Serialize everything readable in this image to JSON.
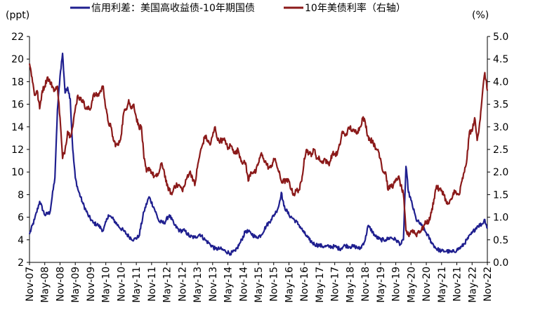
{
  "chart_data": {
    "type": "line",
    "left_unit": "(ppt)",
    "right_unit": "(%)",
    "legend_position": "top",
    "grid": false,
    "left_axis": {
      "min": 2,
      "max": 22,
      "step": 2,
      "ticks": [
        "2",
        "4",
        "6",
        "8",
        "10",
        "12",
        "14",
        "16",
        "18",
        "20",
        "22"
      ]
    },
    "right_axis": {
      "min": 0,
      "max": 5,
      "step": 0.5,
      "ticks": [
        "0.0",
        "0.5",
        "1.0",
        "1.5",
        "2.0",
        "2.5",
        "3.0",
        "3.5",
        "4.0",
        "4.5",
        "5.0"
      ]
    },
    "x_axis": {
      "start": "2007-11",
      "end": "2022-11",
      "ticks": [
        "Nov-07",
        "May-08",
        "Nov-08",
        "May-09",
        "Nov-09",
        "May-10",
        "Nov-10",
        "May-11",
        "Nov-11",
        "May-12",
        "Nov-12",
        "May-13",
        "Nov-13",
        "May-14",
        "Nov-14",
        "May-15",
        "Nov-15",
        "May-16",
        "Nov-16",
        "May-17",
        "Nov-17",
        "May-18",
        "Nov-18",
        "May-19",
        "Nov-19",
        "May-20",
        "Nov-20",
        "May-21",
        "Nov-21",
        "May-22",
        "Nov-22"
      ]
    },
    "series": [
      {
        "name": "信用利差：美国高收益债-10年期国债",
        "axis": "left",
        "color": "#1f1f8f",
        "points": [
          [
            "2007-11",
            4.5
          ],
          [
            "2008-01",
            5.8
          ],
          [
            "2008-03",
            7.4
          ],
          [
            "2008-05",
            6.2
          ],
          [
            "2008-07",
            6.4
          ],
          [
            "2008-09",
            9.5
          ],
          [
            "2008-10",
            15.5
          ],
          [
            "2008-11",
            18.5
          ],
          [
            "2008-12",
            20.5
          ],
          [
            "2009-01",
            17.0
          ],
          [
            "2009-02",
            17.5
          ],
          [
            "2009-03",
            16.5
          ],
          [
            "2009-04",
            12.0
          ],
          [
            "2009-05",
            9.5
          ],
          [
            "2009-06",
            8.5
          ],
          [
            "2009-08",
            7.2
          ],
          [
            "2009-10",
            6.2
          ],
          [
            "2009-12",
            5.5
          ],
          [
            "2010-02",
            5.3
          ],
          [
            "2010-04",
            4.8
          ],
          [
            "2010-06",
            6.2
          ],
          [
            "2010-08",
            5.8
          ],
          [
            "2010-10",
            5.2
          ],
          [
            "2010-12",
            4.8
          ],
          [
            "2011-02",
            4.3
          ],
          [
            "2011-04",
            4.0
          ],
          [
            "2011-06",
            4.3
          ],
          [
            "2011-08",
            6.5
          ],
          [
            "2011-10",
            7.8
          ],
          [
            "2011-12",
            6.8
          ],
          [
            "2012-02",
            5.6
          ],
          [
            "2012-04",
            5.5
          ],
          [
            "2012-06",
            6.2
          ],
          [
            "2012-08",
            5.3
          ],
          [
            "2012-10",
            4.8
          ],
          [
            "2012-12",
            4.8
          ],
          [
            "2013-02",
            4.3
          ],
          [
            "2013-04",
            4.2
          ],
          [
            "2013-06",
            4.5
          ],
          [
            "2013-08",
            4.0
          ],
          [
            "2013-10",
            3.6
          ],
          [
            "2013-12",
            3.2
          ],
          [
            "2014-02",
            3.2
          ],
          [
            "2014-04",
            3.0
          ],
          [
            "2014-06",
            2.8
          ],
          [
            "2014-08",
            3.0
          ],
          [
            "2014-10",
            3.8
          ],
          [
            "2014-12",
            4.8
          ],
          [
            "2015-02",
            4.6
          ],
          [
            "2015-04",
            4.2
          ],
          [
            "2015-06",
            4.4
          ],
          [
            "2015-08",
            5.2
          ],
          [
            "2015-10",
            5.8
          ],
          [
            "2015-12",
            6.5
          ],
          [
            "2016-01",
            7.0
          ],
          [
            "2016-02",
            8.2
          ],
          [
            "2016-03",
            7.0
          ],
          [
            "2016-05",
            6.2
          ],
          [
            "2016-07",
            5.8
          ],
          [
            "2016-09",
            5.3
          ],
          [
            "2016-11",
            4.6
          ],
          [
            "2017-01",
            4.0
          ],
          [
            "2017-03",
            3.6
          ],
          [
            "2017-05",
            3.5
          ],
          [
            "2017-07",
            3.4
          ],
          [
            "2017-09",
            3.4
          ],
          [
            "2017-11",
            3.4
          ],
          [
            "2018-01",
            3.2
          ],
          [
            "2018-03",
            3.5
          ],
          [
            "2018-05",
            3.4
          ],
          [
            "2018-07",
            3.4
          ],
          [
            "2018-09",
            3.2
          ],
          [
            "2018-11",
            4.0
          ],
          [
            "2018-12",
            5.2
          ],
          [
            "2019-01",
            5.0
          ],
          [
            "2019-03",
            4.3
          ],
          [
            "2019-05",
            4.0
          ],
          [
            "2019-07",
            4.0
          ],
          [
            "2019-09",
            4.2
          ],
          [
            "2019-11",
            4.0
          ],
          [
            "2020-01",
            3.6
          ],
          [
            "2020-02",
            4.0
          ],
          [
            "2020-03",
            10.5
          ],
          [
            "2020-04",
            8.2
          ],
          [
            "2020-05",
            7.5
          ],
          [
            "2020-07",
            5.8
          ],
          [
            "2020-09",
            5.3
          ],
          [
            "2020-11",
            4.6
          ],
          [
            "2021-01",
            3.8
          ],
          [
            "2021-03",
            3.2
          ],
          [
            "2021-05",
            3.0
          ],
          [
            "2021-07",
            3.0
          ],
          [
            "2021-09",
            2.9
          ],
          [
            "2021-11",
            3.1
          ],
          [
            "2022-01",
            3.4
          ],
          [
            "2022-03",
            4.0
          ],
          [
            "2022-05",
            4.6
          ],
          [
            "2022-07",
            5.2
          ],
          [
            "2022-09",
            5.4
          ],
          [
            "2022-10",
            5.8
          ],
          [
            "2022-11",
            5.0
          ]
        ]
      },
      {
        "name": "10年美债利率（右轴）",
        "axis": "right",
        "color": "#8b1a1a",
        "points": [
          [
            "2007-11",
            4.4
          ],
          [
            "2007-12",
            4.1
          ],
          [
            "2008-01",
            3.7
          ],
          [
            "2008-02",
            3.8
          ],
          [
            "2008-03",
            3.4
          ],
          [
            "2008-04",
            3.8
          ],
          [
            "2008-05",
            3.9
          ],
          [
            "2008-06",
            4.1
          ],
          [
            "2008-07",
            4.0
          ],
          [
            "2008-08",
            3.9
          ],
          [
            "2008-09",
            3.8
          ],
          [
            "2008-10",
            3.9
          ],
          [
            "2008-11",
            3.2
          ],
          [
            "2008-12",
            2.3
          ],
          [
            "2009-01",
            2.5
          ],
          [
            "2009-02",
            2.9
          ],
          [
            "2009-03",
            2.8
          ],
          [
            "2009-04",
            3.0
          ],
          [
            "2009-05",
            3.4
          ],
          [
            "2009-06",
            3.7
          ],
          [
            "2009-07",
            3.6
          ],
          [
            "2009-08",
            3.6
          ],
          [
            "2009-09",
            3.4
          ],
          [
            "2009-10",
            3.4
          ],
          [
            "2009-11",
            3.4
          ],
          [
            "2009-12",
            3.7
          ],
          [
            "2010-01",
            3.7
          ],
          [
            "2010-02",
            3.7
          ],
          [
            "2010-03",
            3.8
          ],
          [
            "2010-04",
            3.9
          ],
          [
            "2010-05",
            3.4
          ],
          [
            "2010-06",
            3.1
          ],
          [
            "2010-07",
            3.0
          ],
          [
            "2010-08",
            2.7
          ],
          [
            "2010-09",
            2.6
          ],
          [
            "2010-10",
            2.6
          ],
          [
            "2010-11",
            2.8
          ],
          [
            "2010-12",
            3.3
          ],
          [
            "2011-01",
            3.4
          ],
          [
            "2011-02",
            3.6
          ],
          [
            "2011-03",
            3.4
          ],
          [
            "2011-04",
            3.5
          ],
          [
            "2011-05",
            3.2
          ],
          [
            "2011-06",
            3.0
          ],
          [
            "2011-07",
            3.0
          ],
          [
            "2011-08",
            2.3
          ],
          [
            "2011-09",
            2.0
          ],
          [
            "2011-10",
            2.1
          ],
          [
            "2011-11",
            2.0
          ],
          [
            "2011-12",
            1.9
          ],
          [
            "2012-01",
            1.9
          ],
          [
            "2012-02",
            2.0
          ],
          [
            "2012-03",
            2.2
          ],
          [
            "2012-04",
            2.0
          ],
          [
            "2012-05",
            1.7
          ],
          [
            "2012-06",
            1.6
          ],
          [
            "2012-07",
            1.5
          ],
          [
            "2012-08",
            1.7
          ],
          [
            "2012-09",
            1.7
          ],
          [
            "2012-10",
            1.7
          ],
          [
            "2012-11",
            1.6
          ],
          [
            "2012-12",
            1.7
          ],
          [
            "2013-01",
            1.9
          ],
          [
            "2013-02",
            2.0
          ],
          [
            "2013-03",
            1.9
          ],
          [
            "2013-04",
            1.7
          ],
          [
            "2013-05",
            2.1
          ],
          [
            "2013-06",
            2.4
          ],
          [
            "2013-07",
            2.6
          ],
          [
            "2013-08",
            2.8
          ],
          [
            "2013-09",
            2.7
          ],
          [
            "2013-10",
            2.6
          ],
          [
            "2013-11",
            2.8
          ],
          [
            "2013-12",
            3.0
          ],
          [
            "2014-01",
            2.7
          ],
          [
            "2014-02",
            2.7
          ],
          [
            "2014-03",
            2.7
          ],
          [
            "2014-04",
            2.7
          ],
          [
            "2014-05",
            2.5
          ],
          [
            "2014-06",
            2.6
          ],
          [
            "2014-07",
            2.5
          ],
          [
            "2014-08",
            2.4
          ],
          [
            "2014-09",
            2.5
          ],
          [
            "2014-10",
            2.3
          ],
          [
            "2014-11",
            2.2
          ],
          [
            "2014-12",
            2.2
          ],
          [
            "2015-01",
            1.8
          ],
          [
            "2015-02",
            2.0
          ],
          [
            "2015-03",
            2.0
          ],
          [
            "2015-04",
            2.0
          ],
          [
            "2015-05",
            2.2
          ],
          [
            "2015-06",
            2.4
          ],
          [
            "2015-07",
            2.3
          ],
          [
            "2015-08",
            2.2
          ],
          [
            "2015-09",
            2.1
          ],
          [
            "2015-10",
            2.1
          ],
          [
            "2015-11",
            2.3
          ],
          [
            "2015-12",
            2.2
          ],
          [
            "2016-01",
            2.0
          ],
          [
            "2016-02",
            1.8
          ],
          [
            "2016-03",
            1.8
          ],
          [
            "2016-04",
            1.8
          ],
          [
            "2016-05",
            1.8
          ],
          [
            "2016-06",
            1.6
          ],
          [
            "2016-07",
            1.5
          ],
          [
            "2016-08",
            1.6
          ],
          [
            "2016-09",
            1.6
          ],
          [
            "2016-10",
            1.8
          ],
          [
            "2016-11",
            2.3
          ],
          [
            "2016-12",
            2.5
          ],
          [
            "2017-01",
            2.4
          ],
          [
            "2017-02",
            2.4
          ],
          [
            "2017-03",
            2.5
          ],
          [
            "2017-04",
            2.3
          ],
          [
            "2017-05",
            2.3
          ],
          [
            "2017-06",
            2.2
          ],
          [
            "2017-07",
            2.3
          ],
          [
            "2017-08",
            2.2
          ],
          [
            "2017-09",
            2.2
          ],
          [
            "2017-10",
            2.4
          ],
          [
            "2017-11",
            2.4
          ],
          [
            "2017-12",
            2.4
          ],
          [
            "2018-01",
            2.6
          ],
          [
            "2018-02",
            2.9
          ],
          [
            "2018-03",
            2.8
          ],
          [
            "2018-04",
            2.9
          ],
          [
            "2018-05",
            3.0
          ],
          [
            "2018-06",
            2.9
          ],
          [
            "2018-07",
            2.9
          ],
          [
            "2018-08",
            2.9
          ],
          [
            "2018-09",
            3.0
          ],
          [
            "2018-10",
            3.2
          ],
          [
            "2018-11",
            3.1
          ],
          [
            "2018-12",
            2.8
          ],
          [
            "2019-01",
            2.7
          ],
          [
            "2019-02",
            2.7
          ],
          [
            "2019-03",
            2.5
          ],
          [
            "2019-04",
            2.5
          ],
          [
            "2019-05",
            2.3
          ],
          [
            "2019-06",
            2.0
          ],
          [
            "2019-07",
            2.0
          ],
          [
            "2019-08",
            1.6
          ],
          [
            "2019-09",
            1.7
          ],
          [
            "2019-10",
            1.7
          ],
          [
            "2019-11",
            1.8
          ],
          [
            "2019-12",
            1.9
          ],
          [
            "2020-01",
            1.7
          ],
          [
            "2020-02",
            1.5
          ],
          [
            "2020-03",
            0.7
          ],
          [
            "2020-04",
            0.6
          ],
          [
            "2020-05",
            0.7
          ],
          [
            "2020-06",
            0.7
          ],
          [
            "2020-07",
            0.6
          ],
          [
            "2020-08",
            0.7
          ],
          [
            "2020-09",
            0.7
          ],
          [
            "2020-10",
            0.8
          ],
          [
            "2020-11",
            0.9
          ],
          [
            "2020-12",
            0.9
          ],
          [
            "2021-01",
            1.1
          ],
          [
            "2021-02",
            1.4
          ],
          [
            "2021-03",
            1.7
          ],
          [
            "2021-04",
            1.6
          ],
          [
            "2021-05",
            1.6
          ],
          [
            "2021-06",
            1.5
          ],
          [
            "2021-07",
            1.3
          ],
          [
            "2021-08",
            1.3
          ],
          [
            "2021-09",
            1.4
          ],
          [
            "2021-10",
            1.6
          ],
          [
            "2021-11",
            1.5
          ],
          [
            "2021-12",
            1.5
          ],
          [
            "2022-01",
            1.8
          ],
          [
            "2022-02",
            2.0
          ],
          [
            "2022-03",
            2.3
          ],
          [
            "2022-04",
            2.9
          ],
          [
            "2022-05",
            2.9
          ],
          [
            "2022-06",
            3.2
          ],
          [
            "2022-07",
            2.7
          ],
          [
            "2022-08",
            3.1
          ],
          [
            "2022-09",
            3.7
          ],
          [
            "2022-10",
            4.2
          ],
          [
            "2022-11",
            3.8
          ]
        ]
      }
    ]
  }
}
